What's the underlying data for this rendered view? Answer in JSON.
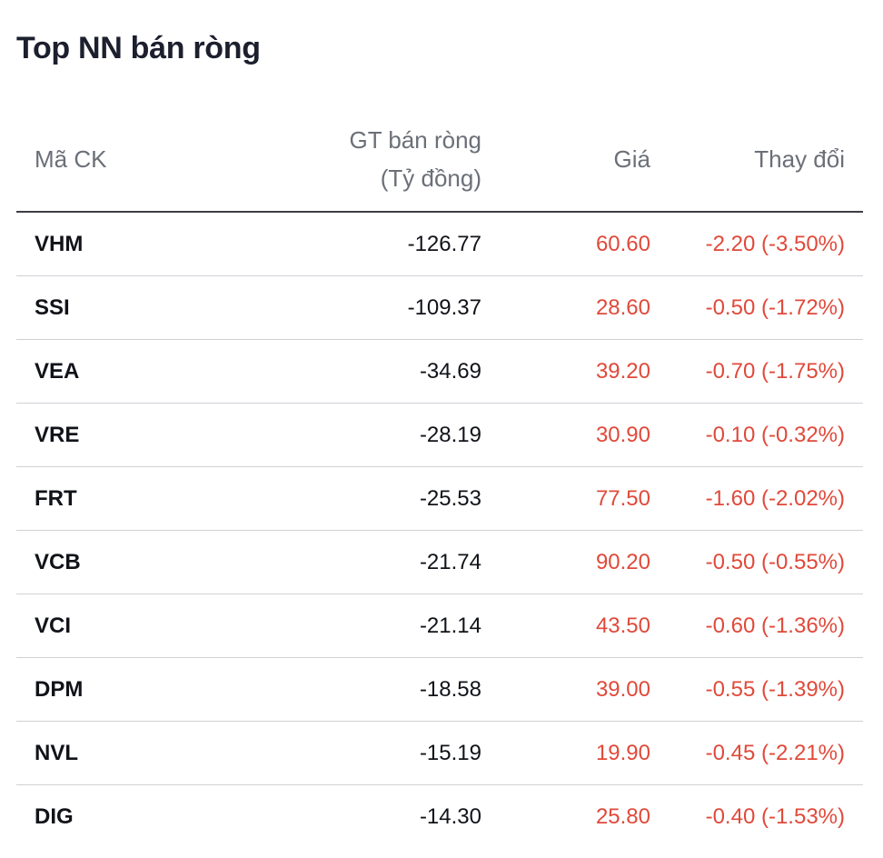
{
  "title": "Top NN bán ròng",
  "colors": {
    "negative": "#e0493a",
    "text": "#111319",
    "header_text": "#6b6f78"
  },
  "columns": {
    "symbol": "Mã CK",
    "net_value_line1": "GT bán ròng",
    "net_value_line2": "(Tỷ đồng)",
    "price": "Giá",
    "change": "Thay đổi"
  },
  "rows": [
    {
      "symbol": "VHM",
      "net_value": "-126.77",
      "price": "60.60",
      "change": "-2.20 (-3.50%)"
    },
    {
      "symbol": "SSI",
      "net_value": "-109.37",
      "price": "28.60",
      "change": "-0.50 (-1.72%)"
    },
    {
      "symbol": "VEA",
      "net_value": "-34.69",
      "price": "39.20",
      "change": "-0.70 (-1.75%)"
    },
    {
      "symbol": "VRE",
      "net_value": "-28.19",
      "price": "30.90",
      "change": "-0.10 (-0.32%)"
    },
    {
      "symbol": "FRT",
      "net_value": "-25.53",
      "price": "77.50",
      "change": "-1.60 (-2.02%)"
    },
    {
      "symbol": "VCB",
      "net_value": "-21.74",
      "price": "90.20",
      "change": "-0.50 (-0.55%)"
    },
    {
      "symbol": "VCI",
      "net_value": "-21.14",
      "price": "43.50",
      "change": "-0.60 (-1.36%)"
    },
    {
      "symbol": "DPM",
      "net_value": "-18.58",
      "price": "39.00",
      "change": "-0.55 (-1.39%)"
    },
    {
      "symbol": "NVL",
      "net_value": "-15.19",
      "price": "19.90",
      "change": "-0.45 (-2.21%)"
    },
    {
      "symbol": "DIG",
      "net_value": "-14.30",
      "price": "25.80",
      "change": "-0.40 (-1.53%)"
    }
  ]
}
